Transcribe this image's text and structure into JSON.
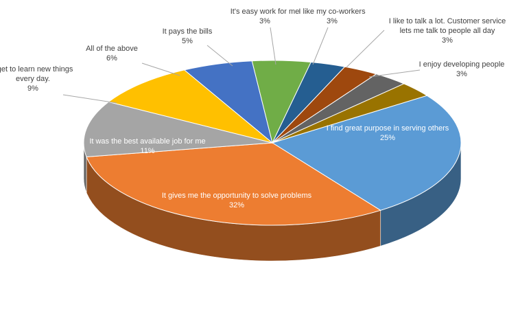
{
  "chart_data": {
    "type": "pie",
    "title": "",
    "categories": [
      "I find great purpose in serving others",
      "It gives me the opportunity to solve problems",
      "It was the best available job for me",
      "I get to learn new things every day.",
      "All of the above",
      "It pays the bills",
      "It's easy work for me",
      "I like my co-workers",
      "I like to talk a lot. Customer service lets me talk to people all day",
      "I enjoy developing people"
    ],
    "values": [
      25,
      32,
      11,
      9,
      6,
      5,
      3,
      3,
      3,
      3
    ],
    "labels": [
      {
        "lines": [
          "I find great purpose in serving others"
        ],
        "pct": "25%"
      },
      {
        "lines": [
          "It gives me the opportunity to solve problems"
        ],
        "pct": "32%"
      },
      {
        "lines": [
          "It was the best available job for me"
        ],
        "pct": "11%"
      },
      {
        "lines": [
          "I get to learn new things",
          "every day."
        ],
        "pct": "9%"
      },
      {
        "lines": [
          "All of the above"
        ],
        "pct": "6%"
      },
      {
        "lines": [
          "It pays the bills"
        ],
        "pct": "5%"
      },
      {
        "lines": [
          "It's easy work for me"
        ],
        "pct": "3%"
      },
      {
        "lines": [
          "I like my co-workers"
        ],
        "pct": "3%"
      },
      {
        "lines": [
          "I like to talk a lot. Customer service",
          "lets me talk to people all day"
        ],
        "pct": "3%"
      },
      {
        "lines": [
          "I enjoy developing people"
        ],
        "pct": "3%"
      }
    ],
    "colors": [
      "#5B9BD5",
      "#ED7D31",
      "#A5A5A5",
      "#FFC000",
      "#4472C4",
      "#70AD47",
      "#255E91",
      "#9E480E",
      "#636363",
      "#997300"
    ],
    "style": "3d-pie",
    "legend": "none"
  }
}
